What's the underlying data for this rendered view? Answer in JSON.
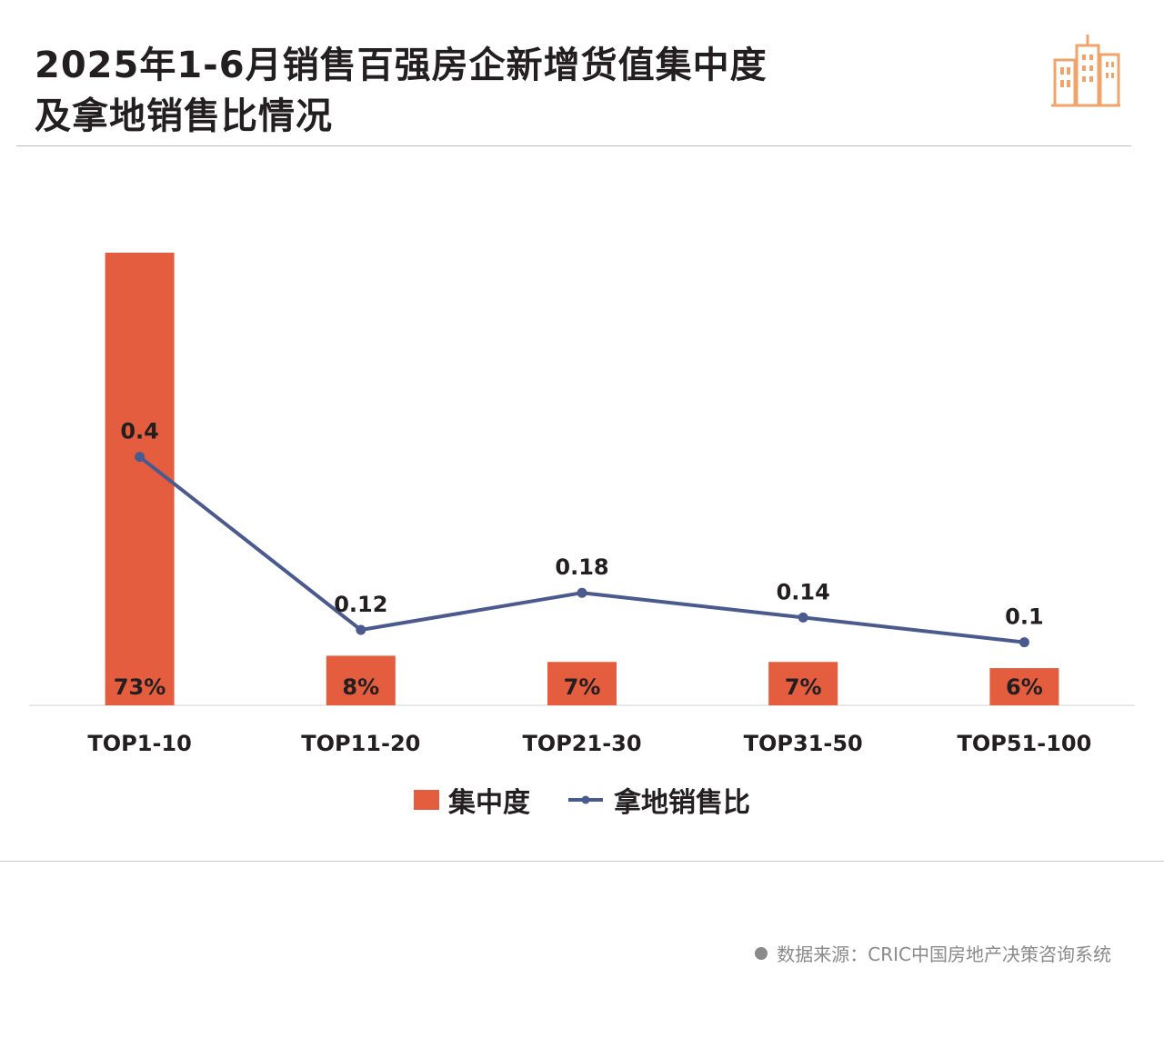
{
  "title": {
    "line1": "2025年1-6月销售百强房企新增货值集中度",
    "line2": "及拿地销售比情况"
  },
  "logo_icon": "city-buildings-icon",
  "colors": {
    "bar": "#e35d3e",
    "line": "#4b5a8e",
    "accent": "#f0a46b"
  },
  "legend": {
    "bar_label": "集中度",
    "line_label": "拿地销售比"
  },
  "source": "数据来源：CRIC中国房地产决策咨询系统",
  "chart_data": {
    "type": "bar+line",
    "categories": [
      "TOP1-10",
      "TOP11-20",
      "TOP21-30",
      "TOP31-50",
      "TOP51-100"
    ],
    "series": [
      {
        "name": "集中度",
        "type": "bar",
        "values": [
          73,
          8,
          7,
          7,
          6
        ],
        "labels": [
          "73%",
          "8%",
          "7%",
          "7%",
          "6%"
        ]
      },
      {
        "name": "拿地销售比",
        "type": "line",
        "values": [
          0.4,
          0.12,
          0.18,
          0.14,
          0.1
        ],
        "labels": [
          "0.4",
          "0.12",
          "0.18",
          "0.14",
          "0.1"
        ]
      }
    ],
    "legend_position": "bottom",
    "grid": false
  }
}
